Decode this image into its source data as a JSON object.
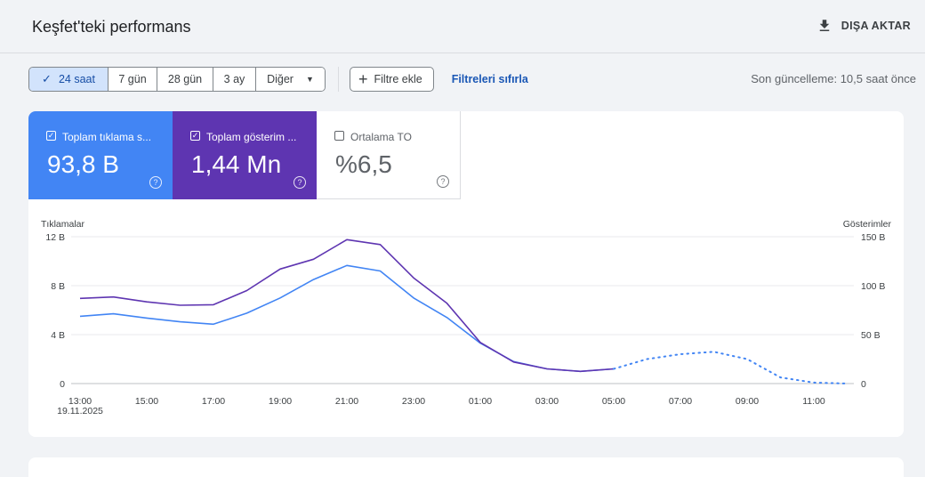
{
  "header": {
    "title": "Keşfet'teki performans",
    "export_label": "DIŞA AKTAR"
  },
  "toolbar": {
    "ranges": [
      {
        "label": "24 saat",
        "active": true
      },
      {
        "label": "7 gün"
      },
      {
        "label": "28 gün"
      },
      {
        "label": "3 ay"
      },
      {
        "label": "Diğer"
      }
    ],
    "filter_label": "Filtre ekle",
    "reset_label": "Filtreleri sıfırla",
    "last_update": "Son güncelleme: 10,5 saat önce"
  },
  "metrics": [
    {
      "label": "Toplam tıklama s...",
      "value": "93,8 B",
      "checked": true,
      "color": "#4285f4"
    },
    {
      "label": "Toplam gösterim ...",
      "value": "1,44 Mn",
      "checked": true,
      "color": "#5e35b1"
    },
    {
      "label": "Ortalama TO",
      "value": "%6,5",
      "checked": false
    }
  ],
  "chart_data": {
    "type": "line",
    "left_axis": {
      "label": "Tıklamalar",
      "ticks": [
        "0",
        "4 B",
        "8 B",
        "12 B"
      ],
      "ylim": [
        0,
        12000
      ]
    },
    "right_axis": {
      "label": "Gösterimler",
      "ticks": [
        "0",
        "50 B",
        "100 B",
        "150 B"
      ],
      "ylim": [
        0,
        150000
      ]
    },
    "x_ticks": [
      "13:00",
      "15:00",
      "17:00",
      "19:00",
      "21:00",
      "23:00",
      "01:00",
      "03:00",
      "05:00",
      "07:00",
      "09:00",
      "11:00"
    ],
    "x_sub_label": "19.11.2025",
    "x_hours": [
      13,
      14,
      15,
      16,
      17,
      18,
      19,
      20,
      21,
      22,
      23,
      24,
      25,
      26,
      27,
      28,
      29
    ],
    "series": [
      {
        "axis": "left",
        "color": "#4285f4",
        "values": [
          5500,
          5700,
          5350,
          5050,
          4850,
          5750,
          7000,
          8500,
          9650,
          9200,
          7000,
          5400,
          3300,
          1800,
          1200,
          1000,
          1200
        ]
      },
      {
        "axis": "right",
        "color": "#5e35b1",
        "values": [
          87000,
          88500,
          83500,
          80000,
          80500,
          95000,
          117000,
          127000,
          147000,
          142000,
          108000,
          82000,
          42000,
          22000,
          15000,
          12500,
          15000
        ]
      },
      {
        "axis": "left",
        "color": "#4285f4",
        "dotted": true,
        "x_hours": [
          29,
          30,
          31,
          32,
          33,
          34,
          35,
          36
        ],
        "values": [
          1200,
          2000,
          2400,
          2600,
          2000,
          500,
          80,
          0
        ]
      }
    ],
    "grid": true
  }
}
